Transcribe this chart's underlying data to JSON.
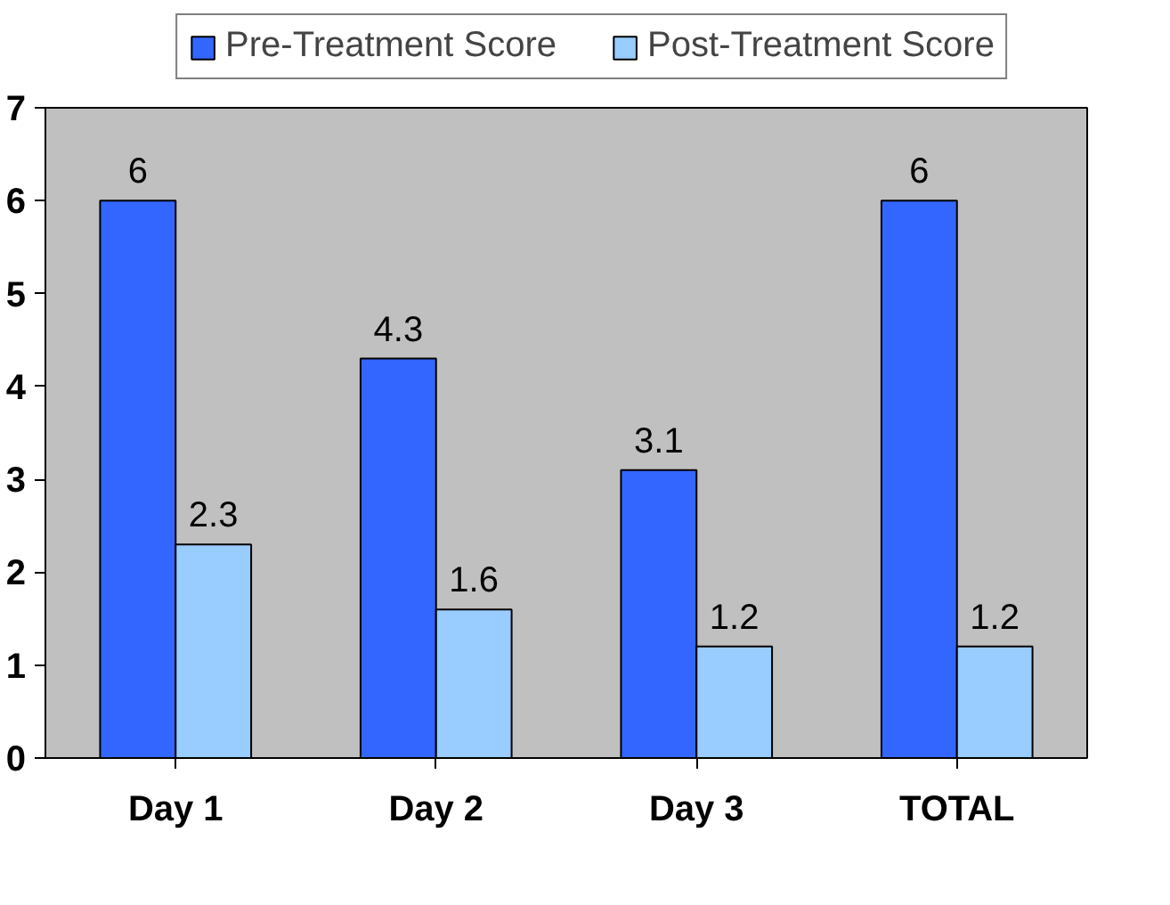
{
  "chart_data": {
    "type": "bar",
    "categories": [
      "Day 1",
      "Day 2",
      "Day 3",
      "TOTAL"
    ],
    "series": [
      {
        "name": "Pre-Treatment Score",
        "color": "#3366ff",
        "values": [
          6,
          4.3,
          3.1,
          6
        ]
      },
      {
        "name": "Post-Treatment Score",
        "color": "#99ccff",
        "values": [
          2.3,
          1.6,
          1.2,
          1.2
        ]
      }
    ],
    "ylim": [
      0,
      7
    ],
    "yticks": [
      0,
      1,
      2,
      3,
      4,
      5,
      6,
      7
    ],
    "grid": false,
    "legend": "top",
    "data_labels": true
  }
}
